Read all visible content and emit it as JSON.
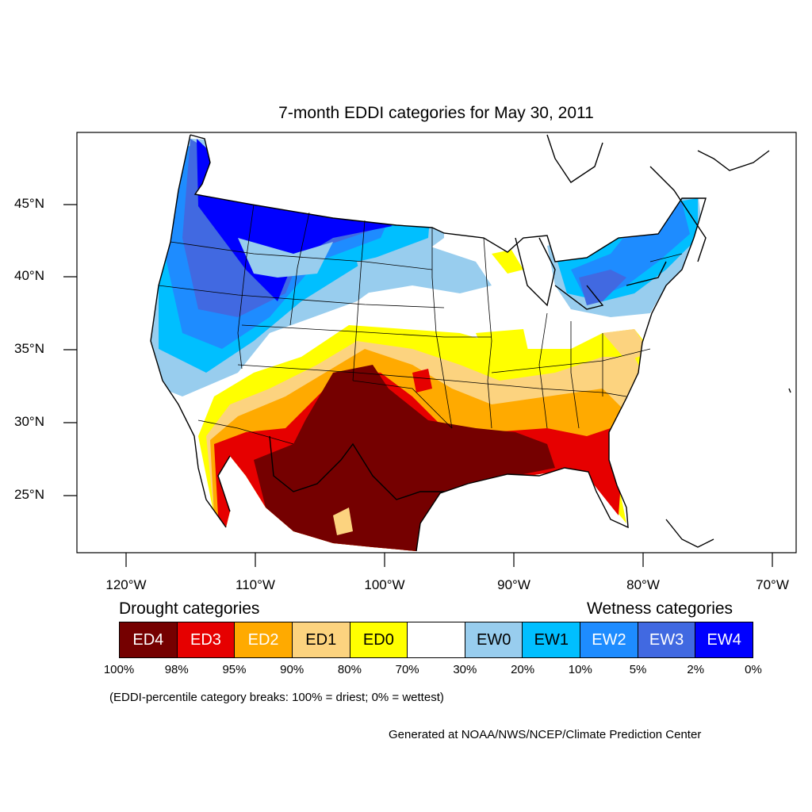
{
  "title": "7-month EDDI categories for May 30, 2011",
  "axes": {
    "lat_labels": [
      "45°N",
      "40°N",
      "35°N",
      "30°N",
      "25°N"
    ],
    "lon_labels": [
      "120°W",
      "110°W",
      "100°W",
      "90°W",
      "80°W",
      "70°W"
    ]
  },
  "legend": {
    "drought_heading": "Drought categories",
    "wetness_heading": "Wetness categories",
    "categories": [
      {
        "label": "ED4",
        "color": "#750000",
        "text_color": "#ffffff"
      },
      {
        "label": "ED3",
        "color": "#e60000",
        "text_color": "#ffffff"
      },
      {
        "label": "ED2",
        "color": "#ffaa00",
        "text_color": "#ffffff"
      },
      {
        "label": "ED1",
        "color": "#fcd37f",
        "text_color": "#000000"
      },
      {
        "label": "ED0",
        "color": "#ffff00",
        "text_color": "#000000"
      },
      {
        "label": "",
        "color": "#ffffff",
        "text_color": "#000000"
      },
      {
        "label": "EW0",
        "color": "#98cdee",
        "text_color": "#000000"
      },
      {
        "label": "EW1",
        "color": "#00bfff",
        "text_color": "#000000"
      },
      {
        "label": "EW2",
        "color": "#1e8cff",
        "text_color": "#ffffff"
      },
      {
        "label": "EW3",
        "color": "#4169e1",
        "text_color": "#ffffff"
      },
      {
        "label": "EW4",
        "color": "#0000ff",
        "text_color": "#ffffff"
      }
    ],
    "breaks": [
      "100%",
      "98%",
      "95%",
      "90%",
      "80%",
      "70%",
      "30%",
      "20%",
      "10%",
      "5%",
      "2%",
      "0%"
    ]
  },
  "note": "(EDDI-percentile category breaks: 100% = driest; 0% = wettest)",
  "credit": "Generated at NOAA/NWS/NCEP/Climate Prediction Center"
}
